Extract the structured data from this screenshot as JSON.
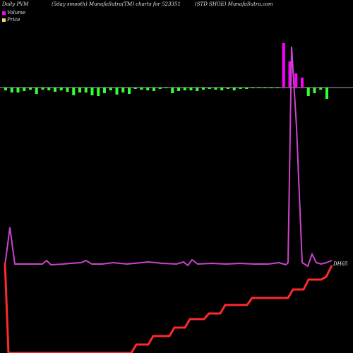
{
  "header": {
    "left": "Daily PVM",
    "center": "(5day smooth) MunafaSutra(TM) charts for 523351",
    "right": "(STD SHOE) MunafaSutra.com"
  },
  "legend": [
    {
      "label": "Volume",
      "color": "#ff00ff"
    },
    {
      "label": "Price",
      "color": "#ffcc66"
    }
  ],
  "colors": {
    "background": "#000000",
    "volume_up": "#ff00ff",
    "volume_down": "#33ff33",
    "baseline": "#aaaaaa",
    "volume_line": "#cc44cc",
    "price_line": "#ff2a2a"
  },
  "chart_data": {
    "type": "line",
    "bars": [
      -4,
      -7,
      -7,
      -5,
      -3,
      -9,
      -3,
      -4,
      -6,
      -4,
      -6,
      -11,
      -7,
      -7,
      -11,
      -12,
      -8,
      -4,
      -10,
      -7,
      -9,
      -2,
      -3,
      -4,
      -5,
      -2,
      -1,
      -8,
      -5,
      -4,
      -4,
      -5,
      -3,
      -2,
      -3,
      -4,
      -2,
      -4,
      -2,
      -2,
      -1,
      -1,
      -1,
      -1,
      -1,
      63,
      37,
      20,
      14,
      -12,
      -8,
      -3,
      -16
    ],
    "bar_labels": [],
    "series": [
      {
        "values": [
          -1,
          55,
          -1,
          -1,
          -1,
          -1,
          -1,
          -1,
          -1,
          -1,
          -1,
          -1,
          -1,
          -1,
          -1,
          -1,
          -1,
          -1,
          -1,
          -1,
          -1,
          -1,
          -1,
          -1,
          -1,
          -1,
          -1,
          -1,
          -1,
          -1,
          -1,
          -1,
          -1,
          -1,
          -1,
          -1,
          -1,
          -1,
          -1,
          -1,
          -1,
          -1,
          -1,
          -1,
          -1,
          -1,
          -1,
          -1,
          -1,
          -1,
          -1,
          -1,
          330,
          -1,
          -1,
          -1,
          -1,
          -1
        ],
        "pattern": "volume"
      },
      {
        "values": [],
        "pattern": "price"
      }
    ],
    "price_label": "DH65",
    "xlabel": "",
    "ylabel": ""
  }
}
